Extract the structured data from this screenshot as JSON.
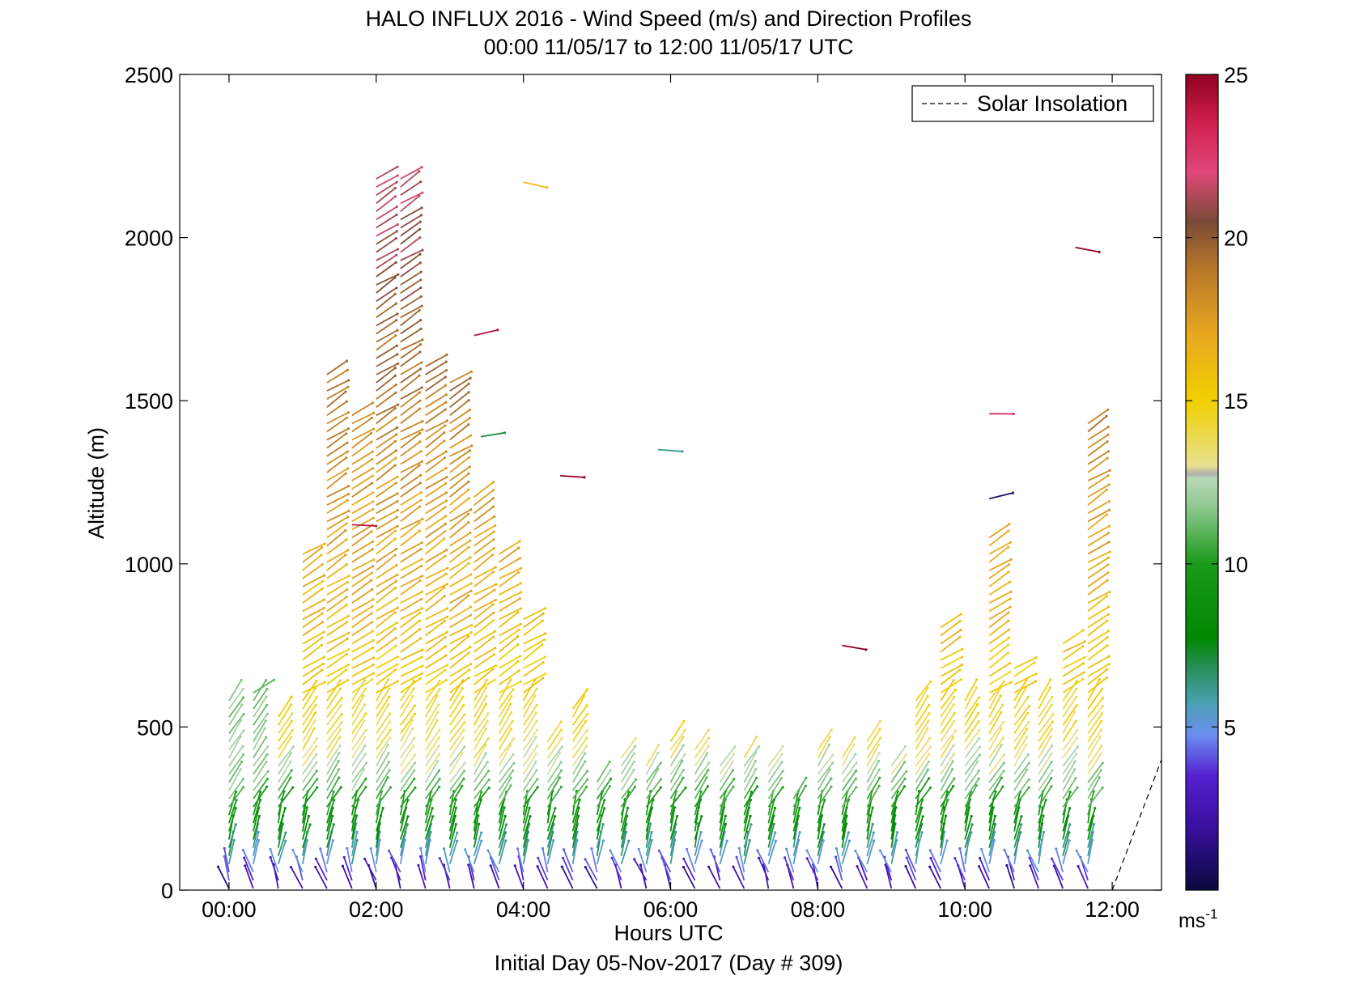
{
  "chart_data": {
    "type": "scatter",
    "title": "HALO INFLUX 2016 - Wind Speed (m/s) and Direction Profiles",
    "subtitle": "00:00 11/05/17 to 12:00 11/05/17  UTC",
    "xlabel": "Hours UTC",
    "footer": "Initial Day 05-Nov-2017 (Day # 309)",
    "ylabel": "Altitude (m)",
    "xlim": [
      -0.67,
      12.67
    ],
    "ylim": [
      0,
      2500
    ],
    "x_ticks": [
      "00:00",
      "02:00",
      "04:00",
      "06:00",
      "08:00",
      "10:00",
      "12:00"
    ],
    "y_ticks": [
      "0",
      "500",
      "1000",
      "1500",
      "2000",
      "2500"
    ],
    "colorbar": {
      "range": [
        0,
        25
      ],
      "ticks": [
        "5",
        "10",
        "15",
        "20",
        "25"
      ],
      "unit_base": "ms",
      "unit_exp": "-1"
    },
    "legend": {
      "label": "Solar Insolation",
      "position": "top-right"
    },
    "solar_insolation": {
      "x": [
        12.0,
        12.67
      ],
      "y": [
        0,
        400
      ]
    },
    "profile_times": [
      0,
      0.33,
      0.67,
      1.0,
      1.33,
      1.67,
      2.0,
      2.33,
      2.67,
      3.0,
      3.33,
      3.67,
      4.0,
      4.33,
      4.67,
      5.0,
      5.33,
      5.67,
      6.0,
      6.33,
      6.67,
      7.0,
      7.33,
      7.67,
      8.0,
      8.33,
      8.67,
      9.0,
      9.33,
      9.67,
      10.0,
      10.33,
      10.67,
      11.0,
      11.33,
      11.67
    ],
    "profile_top_altitude": [
      580,
      620,
      550,
      1040,
      1580,
      1460,
      2180,
      2180,
      1620,
      1560,
      1210,
      1040,
      840,
      460,
      560,
      340,
      420,
      400,
      460,
      440,
      380,
      420,
      400,
      300,
      440,
      420,
      460,
      400,
      580,
      820,
      600,
      1080,
      700,
      580,
      760,
      1450
    ],
    "isolated_barbs": [
      {
        "time": 1.67,
        "alt": 1120,
        "speed": 24
      },
      {
        "time": 3.33,
        "alt": 1700,
        "speed": 24
      },
      {
        "time": 3.42,
        "alt": 1390,
        "speed": 7
      },
      {
        "time": 4.0,
        "alt": 2170,
        "speed": 16
      },
      {
        "time": 4.5,
        "alt": 1270,
        "speed": 25
      },
      {
        "time": 5.83,
        "alt": 1350,
        "speed": 6
      },
      {
        "time": 8.33,
        "alt": 750,
        "speed": 25
      },
      {
        "time": 10.33,
        "alt": 1460,
        "speed": 23
      },
      {
        "time": 10.33,
        "alt": 1200,
        "speed": 1
      },
      {
        "time": 11.5,
        "alt": 1970,
        "speed": 25
      }
    ]
  }
}
